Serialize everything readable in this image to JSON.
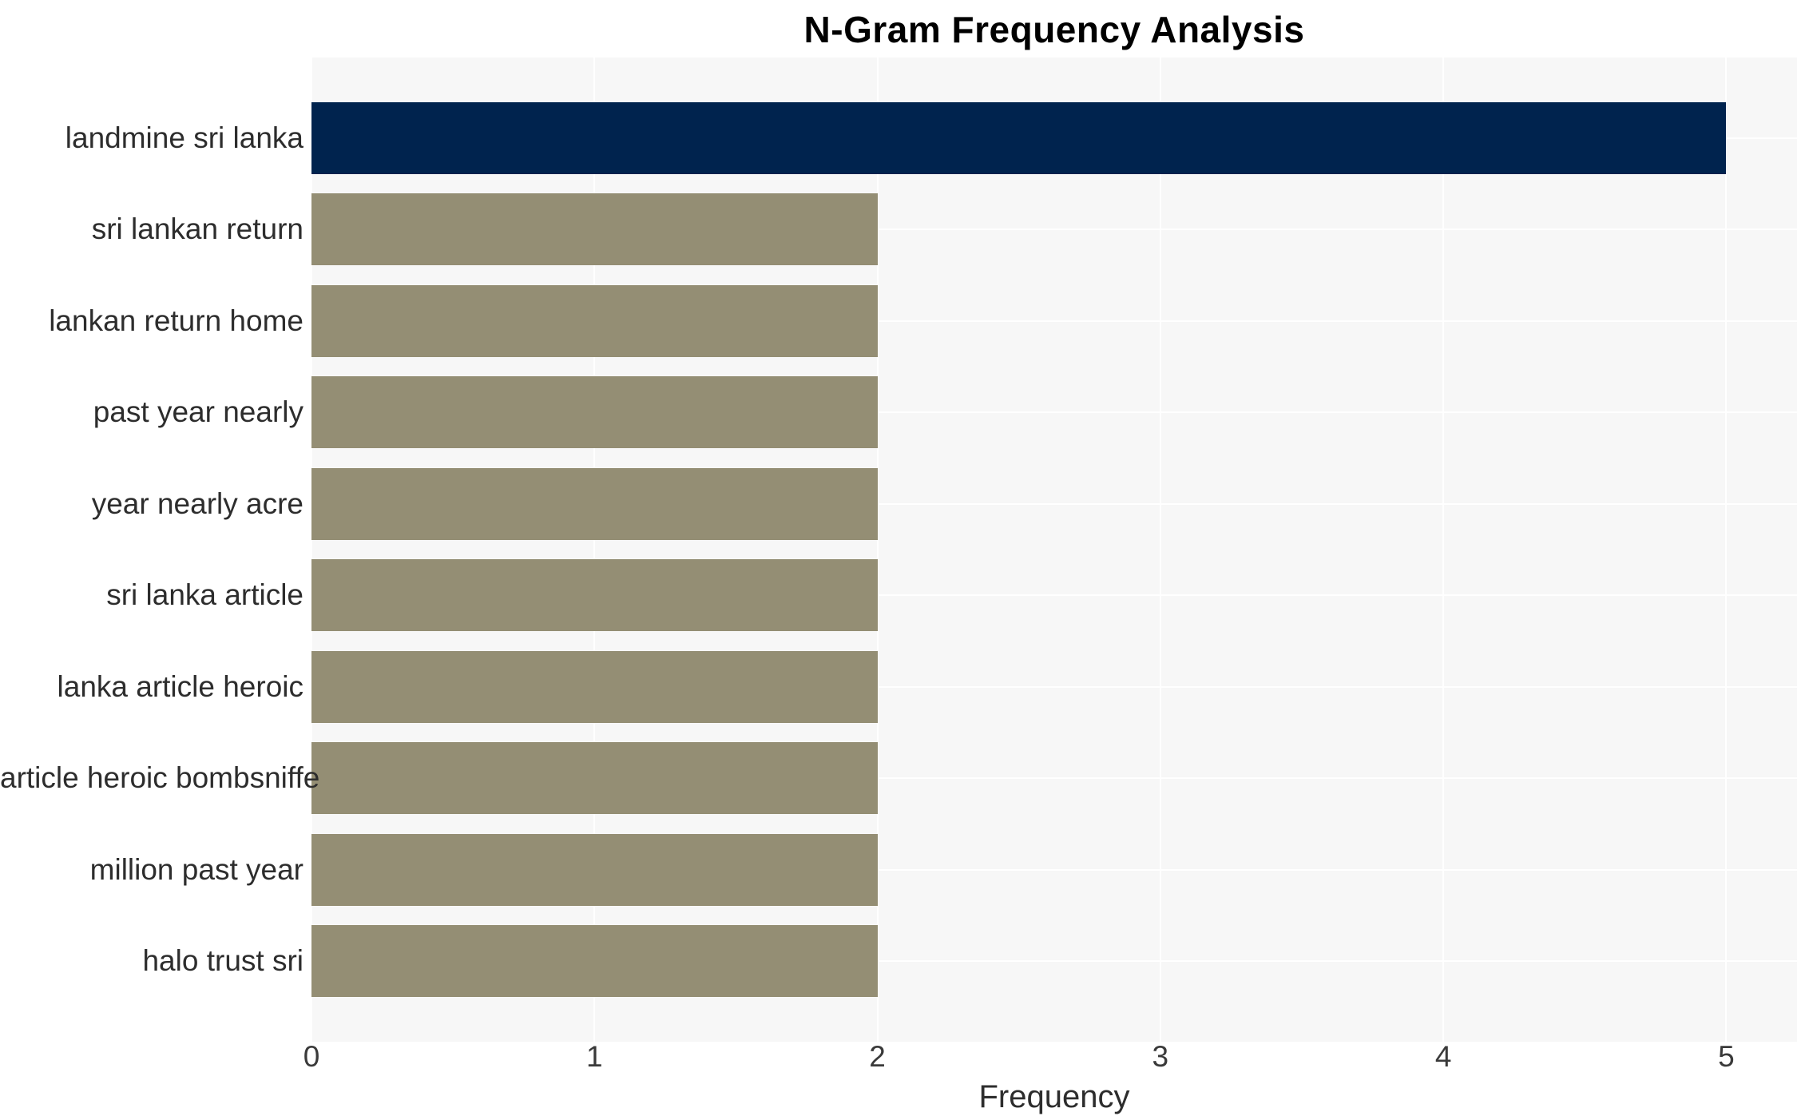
{
  "chart_data": {
    "type": "bar",
    "orientation": "horizontal",
    "title": "N-Gram Frequency Analysis",
    "xlabel": "Frequency",
    "ylabel": "",
    "categories": [
      "landmine sri lanka",
      "sri lankan return",
      "lankan return home",
      "past year nearly",
      "year nearly acre",
      "sri lanka article",
      "lanka article heroic",
      "article heroic bombsniffe",
      "million past year",
      "halo trust sri"
    ],
    "values": [
      5,
      2,
      2,
      2,
      2,
      2,
      2,
      2,
      2,
      2
    ],
    "x_ticks": [
      "0",
      "1",
      "2",
      "3",
      "4",
      "5"
    ],
    "xlim": [
      0,
      5.25
    ],
    "grid": true,
    "legend": "none",
    "bar_colors": [
      "#00234E",
      "#948E74",
      "#948E74",
      "#948E74",
      "#948E74",
      "#948E74",
      "#948E74",
      "#948E74",
      "#948E74",
      "#948E74"
    ],
    "plot_background": "#F7F7F7",
    "grid_color": "#FFFFFF",
    "title_color": "#000000",
    "label_color": "#2D2D2D",
    "tick_color": "#3A3A3A"
  }
}
